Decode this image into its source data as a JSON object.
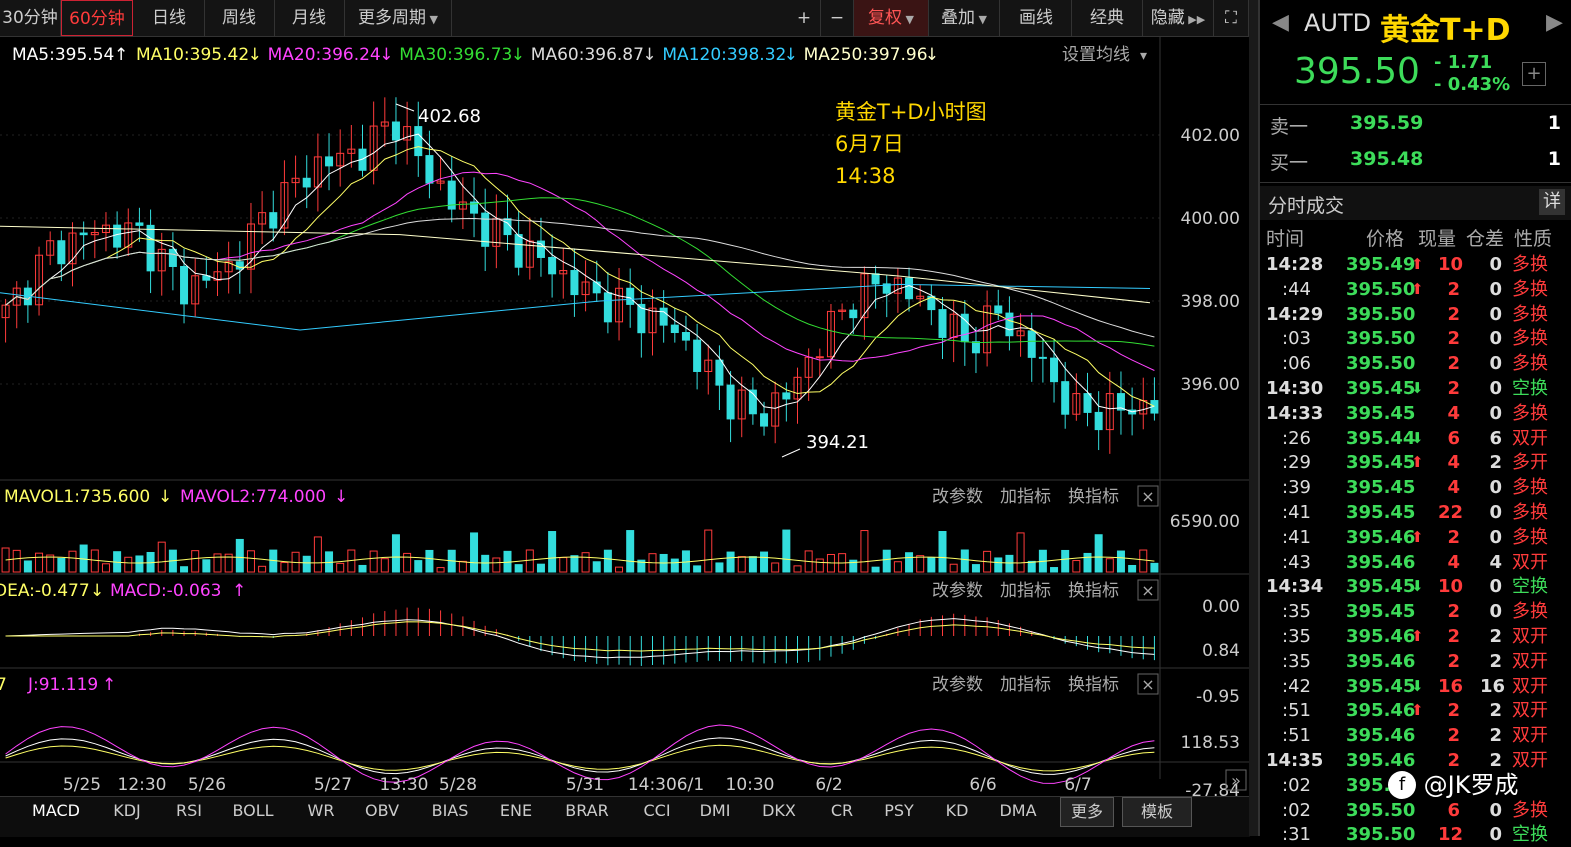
{
  "toolbar": {
    "tabs": [
      "30分钟",
      "60分钟",
      "日线",
      "周线",
      "月线",
      "更多周期"
    ],
    "active_tab": "60分钟",
    "buttons": [
      "+",
      "−",
      "复权",
      "叠加",
      "画线",
      "经典",
      "隐藏"
    ]
  },
  "ma_legend": [
    {
      "label": "MA5:395.54",
      "arrow": "↑",
      "color": "#ffffff"
    },
    {
      "label": "MA10:395.42",
      "arrow": "↓",
      "color": "#ffff66"
    },
    {
      "label": "MA20:396.24",
      "arrow": "↓",
      "color": "#ff44ff"
    },
    {
      "label": "MA30:396.73",
      "arrow": "↓",
      "color": "#33dd33"
    },
    {
      "label": "MA60:396.87",
      "arrow": "↓",
      "color": "#dddddd"
    },
    {
      "label": "MA120:398.32",
      "arrow": "↓",
      "color": "#33ccff"
    },
    {
      "label": "MA250:397.96",
      "arrow": "↓",
      "color": "#ffffcc"
    }
  ],
  "ma_settings": "设置均线",
  "annotation": {
    "line1": "黄金T+D小时图",
    "line2": "6月7日",
    "line3": "14:38"
  },
  "price_axis": [
    "402.00",
    "400.00",
    "398.00",
    "396.00"
  ],
  "high_label": "402.68",
  "low_label": "394.21",
  "vol_legend": {
    "mavol1": "MAVOL1:735.600",
    "mavol1_arrow": "↓",
    "mavol2": "MAVOL2:774.000",
    "mavol2_arrow": "↓"
  },
  "vol_axis": [
    "6590.00",
    "0.00"
  ],
  "macd_legend": {
    "dea": "DEA:-0.477",
    "dea_arrow": "↓",
    "macd": "MACD:-0.063",
    "macd_arrow": "↑"
  },
  "macd_axis": [
    "0.84",
    "-0.95"
  ],
  "kdj_legend": {
    "j": "J:91.119",
    "j_arrow": "↑"
  },
  "kdj_axis": [
    "118.53",
    "-27.84"
  ],
  "panel_actions": [
    "改参数",
    "加指标",
    "换指标"
  ],
  "time_axis": [
    "5/25",
    "12:30",
    "5/26",
    "5/27",
    "13:30",
    "5/28",
    "5/31",
    "14:306/1",
    "10:30",
    "6/2",
    "6/6",
    "6/7"
  ],
  "bottom_tabs": [
    "MACD",
    "KDJ",
    "RSI",
    "BOLL",
    "WR",
    "OBV",
    "BIAS",
    "ENE",
    "BRAR",
    "CCI",
    "DMI",
    "DKX",
    "CR",
    "PSY",
    "KD",
    "DMA",
    "更多",
    "模板"
  ],
  "quote": {
    "code": "AUTD",
    "name": "黄金T+D",
    "price": "395.50",
    "change": "- 1.71",
    "change_pct": "- 0.43%",
    "sell_label": "卖一",
    "sell_price": "395.59",
    "sell_qty": "1",
    "buy_label": "买一",
    "buy_price": "395.48",
    "buy_qty": "1"
  },
  "trades_panel": {
    "title": "分时成交",
    "detail_btn": "详",
    "headers": [
      "时间",
      "价格",
      "现量",
      "仓差",
      "性质"
    ],
    "rows": [
      {
        "time": "14:28",
        "bold": true,
        "price": "395.49",
        "dir": "up",
        "vol": "10",
        "oi": "0",
        "nature": "多换",
        "nc": "red"
      },
      {
        "time": ":44",
        "bold": false,
        "price": "395.50",
        "dir": "up",
        "vol": "2",
        "oi": "0",
        "nature": "多换",
        "nc": "red"
      },
      {
        "time": "14:29",
        "bold": true,
        "price": "395.50",
        "dir": "",
        "vol": "2",
        "oi": "0",
        "nature": "多换",
        "nc": "red"
      },
      {
        "time": ":03",
        "bold": false,
        "price": "395.50",
        "dir": "",
        "vol": "2",
        "oi": "0",
        "nature": "多换",
        "nc": "red"
      },
      {
        "time": ":06",
        "bold": false,
        "price": "395.50",
        "dir": "",
        "vol": "2",
        "oi": "0",
        "nature": "多换",
        "nc": "red"
      },
      {
        "time": "14:30",
        "bold": true,
        "price": "395.45",
        "dir": "down",
        "vol": "2",
        "oi": "0",
        "nature": "空换",
        "nc": "green"
      },
      {
        "time": "14:33",
        "bold": true,
        "price": "395.45",
        "dir": "",
        "vol": "4",
        "oi": "0",
        "nature": "多换",
        "nc": "red"
      },
      {
        "time": ":26",
        "bold": false,
        "price": "395.44",
        "dir": "down",
        "vol": "6",
        "oi": "6",
        "nature": "双开",
        "nc": "red"
      },
      {
        "time": ":29",
        "bold": false,
        "price": "395.45",
        "dir": "up",
        "vol": "4",
        "oi": "2",
        "nature": "多开",
        "nc": "red"
      },
      {
        "time": ":39",
        "bold": false,
        "price": "395.45",
        "dir": "",
        "vol": "4",
        "oi": "0",
        "nature": "多换",
        "nc": "red"
      },
      {
        "time": ":41",
        "bold": false,
        "price": "395.45",
        "dir": "",
        "vol": "22",
        "oi": "0",
        "nature": "多换",
        "nc": "red"
      },
      {
        "time": ":41",
        "bold": false,
        "price": "395.46",
        "dir": "up",
        "vol": "2",
        "oi": "0",
        "nature": "多换",
        "nc": "red"
      },
      {
        "time": ":43",
        "bold": false,
        "price": "395.46",
        "dir": "",
        "vol": "4",
        "oi": "4",
        "nature": "双开",
        "nc": "red"
      },
      {
        "time": "14:34",
        "bold": true,
        "price": "395.45",
        "dir": "down",
        "vol": "10",
        "oi": "0",
        "nature": "空换",
        "nc": "green"
      },
      {
        "time": ":35",
        "bold": false,
        "price": "395.45",
        "dir": "",
        "vol": "2",
        "oi": "0",
        "nature": "多换",
        "nc": "red"
      },
      {
        "time": ":35",
        "bold": false,
        "price": "395.46",
        "dir": "up",
        "vol": "2",
        "oi": "2",
        "nature": "双开",
        "nc": "red"
      },
      {
        "time": ":35",
        "bold": false,
        "price": "395.46",
        "dir": "",
        "vol": "2",
        "oi": "2",
        "nature": "双开",
        "nc": "red"
      },
      {
        "time": ":42",
        "bold": false,
        "price": "395.45",
        "dir": "down",
        "vol": "16",
        "oi": "16",
        "nature": "双开",
        "nc": "red"
      },
      {
        "time": ":51",
        "bold": false,
        "price": "395.46",
        "dir": "up",
        "vol": "2",
        "oi": "2",
        "nature": "双开",
        "nc": "red"
      },
      {
        "time": ":51",
        "bold": false,
        "price": "395.46",
        "dir": "",
        "vol": "2",
        "oi": "2",
        "nature": "双开",
        "nc": "red"
      },
      {
        "time": "14:35",
        "bold": true,
        "price": "395.46",
        "dir": "",
        "vol": "2",
        "oi": "2",
        "nature": "双开",
        "nc": "red"
      },
      {
        "time": ":02",
        "bold": false,
        "price": "395.5",
        "dir": "",
        "vol": "",
        "oi": "",
        "nature": "",
        "nc": "red"
      },
      {
        "time": ":02",
        "bold": false,
        "price": "395.50",
        "dir": "",
        "vol": "6",
        "oi": "0",
        "nature": "多换",
        "nc": "red"
      },
      {
        "time": ":31",
        "bold": false,
        "price": "395.50",
        "dir": "",
        "vol": "12",
        "oi": "0",
        "nature": "空换",
        "nc": "green"
      }
    ]
  },
  "watermark": "@JK罗成",
  "colors": {
    "up": "#ff3b3b",
    "down": "#33dddd",
    "accent": "#ffd700",
    "panel_bg": "#000000"
  }
}
